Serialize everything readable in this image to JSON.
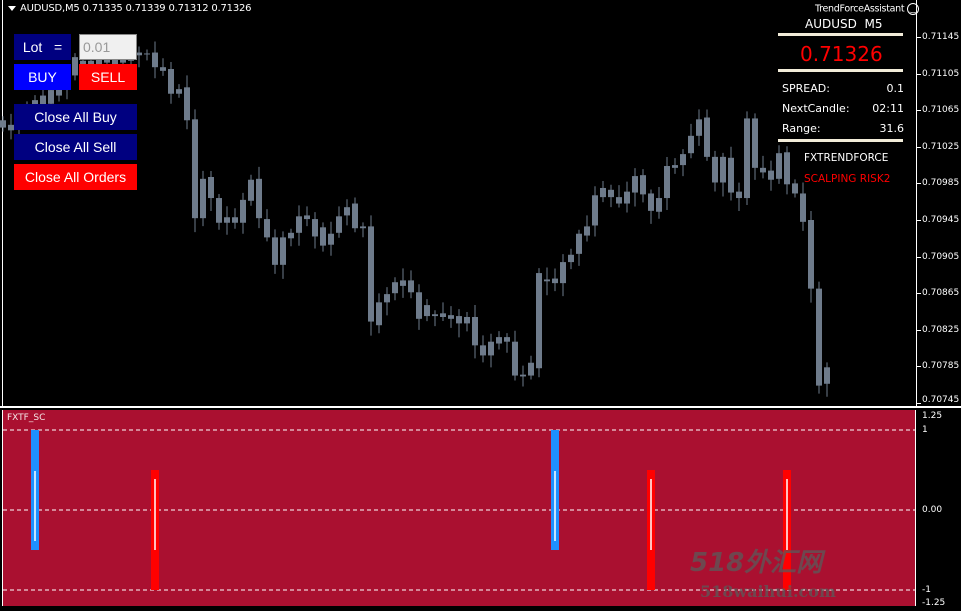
{
  "chart": {
    "symbol_header": "AUDUSD,M5  0.71335 0.71339 0.71312 0.71326",
    "candle_color": "#6e7b8b",
    "background": "#000000",
    "bodies": [
      [
        0.71054,
        0.71046
      ],
      [
        0.71049,
        0.71043
      ],
      [
        0.71059,
        0.71052
      ],
      [
        0.71067,
        0.71056
      ],
      [
        0.71076,
        0.71065
      ],
      [
        0.71081,
        0.7107
      ],
      [
        0.71087,
        0.71072
      ],
      [
        0.71092,
        0.71081
      ],
      [
        0.71103,
        0.71089
      ],
      [
        0.71123,
        0.71103
      ],
      [
        0.71119,
        0.71111
      ],
      [
        0.71119,
        0.71113
      ],
      [
        0.71122,
        0.71115
      ],
      [
        0.71123,
        0.71117
      ],
      [
        0.71122,
        0.71113
      ],
      [
        0.71124,
        0.71117
      ],
      [
        0.71125,
        0.71119
      ],
      [
        0.71128,
        0.71125
      ],
      [
        0.71127,
        0.71126
      ],
      [
        0.71128,
        0.71112
      ],
      [
        0.71112,
        0.71108
      ],
      [
        0.7111,
        0.71083
      ],
      [
        0.71088,
        0.71083
      ],
      [
        0.7109,
        0.71054
      ],
      [
        0.71055,
        0.70947
      ],
      [
        0.7099,
        0.70947
      ],
      [
        0.70992,
        0.70969
      ],
      [
        0.70969,
        0.70942
      ],
      [
        0.70948,
        0.70942
      ],
      [
        0.70948,
        0.70942
      ],
      [
        0.70967,
        0.70942
      ],
      [
        0.70989,
        0.70966
      ],
      [
        0.7099,
        0.70947
      ],
      [
        0.70946,
        0.70926
      ],
      [
        0.70926,
        0.70896
      ],
      [
        0.70926,
        0.70896
      ],
      [
        0.70931,
        0.70925
      ],
      [
        0.70949,
        0.70931
      ],
      [
        0.7095,
        0.70946
      ],
      [
        0.70946,
        0.70927
      ],
      [
        0.70937,
        0.70917
      ],
      [
        0.7093,
        0.70918
      ],
      [
        0.70949,
        0.70931
      ],
      [
        0.70959,
        0.7095
      ],
      [
        0.70963,
        0.70936
      ],
      [
        0.70938,
        0.70936
      ],
      [
        0.70938,
        0.70834
      ],
      [
        0.70855,
        0.7083
      ],
      [
        0.70864,
        0.70855
      ],
      [
        0.70877,
        0.70865
      ],
      [
        0.70879,
        0.70873
      ],
      [
        0.70879,
        0.70866
      ],
      [
        0.70866,
        0.70837
      ],
      [
        0.70852,
        0.7084
      ],
      [
        0.70842,
        0.7084
      ],
      [
        0.70843,
        0.70839
      ],
      [
        0.70841,
        0.70837
      ],
      [
        0.7084,
        0.70832
      ],
      [
        0.70839,
        0.70832
      ],
      [
        0.70839,
        0.70808
      ],
      [
        0.70808,
        0.70797
      ],
      [
        0.70812,
        0.70797
      ],
      [
        0.70817,
        0.7081
      ],
      [
        0.70817,
        0.70812
      ],
      [
        0.70812,
        0.70775
      ],
      [
        0.70776,
        0.70774
      ],
      [
        0.70789,
        0.70775
      ],
      [
        0.70887,
        0.70783
      ],
      [
        0.7088,
        0.70878
      ],
      [
        0.70881,
        0.70876
      ],
      [
        0.70899,
        0.70876
      ],
      [
        0.70907,
        0.70899
      ],
      [
        0.7093,
        0.70908
      ],
      [
        0.70938,
        0.70928
      ],
      [
        0.70972,
        0.70939
      ],
      [
        0.7098,
        0.7097
      ],
      [
        0.70978,
        0.7097
      ],
      [
        0.7097,
        0.70963
      ],
      [
        0.70976,
        0.70963
      ],
      [
        0.70993,
        0.70975
      ],
      [
        0.70994,
        0.70973
      ],
      [
        0.70974,
        0.70955
      ],
      [
        0.70969,
        0.70954
      ],
      [
        0.71004,
        0.70969
      ],
      [
        0.71005,
        0.71002
      ],
      [
        0.71017,
        0.71005
      ],
      [
        0.71037,
        0.71018
      ],
      [
        0.71055,
        0.71037
      ],
      [
        0.71057,
        0.71014
      ],
      [
        0.71014,
        0.70986
      ],
      [
        0.71014,
        0.70986
      ],
      [
        0.71013,
        0.70975
      ],
      [
        0.70976,
        0.70969
      ],
      [
        0.71056,
        0.70969
      ],
      [
        0.71056,
        0.71002
      ],
      [
        0.71002,
        0.70997
      ],
      [
        0.70999,
        0.70989
      ],
      [
        0.71018,
        0.7099
      ],
      [
        0.71019,
        0.70984
      ],
      [
        0.70985,
        0.70974
      ],
      [
        0.70974,
        0.70943
      ],
      [
        0.70945,
        0.7087
      ],
      [
        0.7087,
        0.70764
      ],
      [
        0.70784,
        0.70766
      ]
    ],
    "price_axis": [
      "0.71145",
      "0.71105",
      "0.71065",
      "0.71025",
      "0.70985",
      "0.70945",
      "0.70905",
      "0.70865",
      "0.70825",
      "0.70785",
      "0.70745"
    ]
  },
  "trade_panel": {
    "lot_label": "Lot   =",
    "lot_value": "0.01",
    "buy_label": "BUY",
    "sell_label": "SELL",
    "close_all_buy": "Close All Buy",
    "close_all_sell": "Close All Sell",
    "close_all_orders": "Close All Orders",
    "colors": {
      "navy": "#000080",
      "buy": "#0000ff",
      "sell": "#ff0000"
    }
  },
  "info_panel": {
    "assistant_title": "TrendForceAssistant",
    "assistant_icon": "smiley-icon",
    "symbol": "AUDUSD  M5",
    "price": "0.71326",
    "spread_label": "SPREAD:",
    "spread_value": "0.1",
    "next_candle_label": "NextCandle:",
    "next_candle_value": "02:11",
    "range_label": "Range:",
    "range_value": "31.6",
    "brand": "FXTRENDFORCE",
    "mode": "SCALPING RISK2",
    "price_color": "#ff0000"
  },
  "indicator": {
    "name": "FXTF_SC",
    "background": "#aa1030",
    "axis": [
      "1.25",
      "1",
      "0.00",
      "-1",
      "-1.25"
    ],
    "levels": [
      1,
      0,
      -1
    ],
    "signals": [
      {
        "candle": 4,
        "type": "buy",
        "from": 1,
        "to": -0.5,
        "color": "#1e90ff"
      },
      {
        "candle": 19,
        "type": "sell",
        "from": 0.5,
        "to": -1,
        "color": "#ff0000"
      },
      {
        "candle": 69,
        "type": "buy",
        "from": 1,
        "to": -0.5,
        "color": "#1e90ff"
      },
      {
        "candle": 81,
        "type": "sell",
        "from": 0.5,
        "to": -1,
        "color": "#ff0000"
      },
      {
        "candle": 98,
        "type": "sell",
        "from": 0.5,
        "to": -1,
        "color": "#ff0000"
      }
    ]
  },
  "watermark": {
    "cn": "518外汇网",
    "url": "518waihui.com"
  }
}
